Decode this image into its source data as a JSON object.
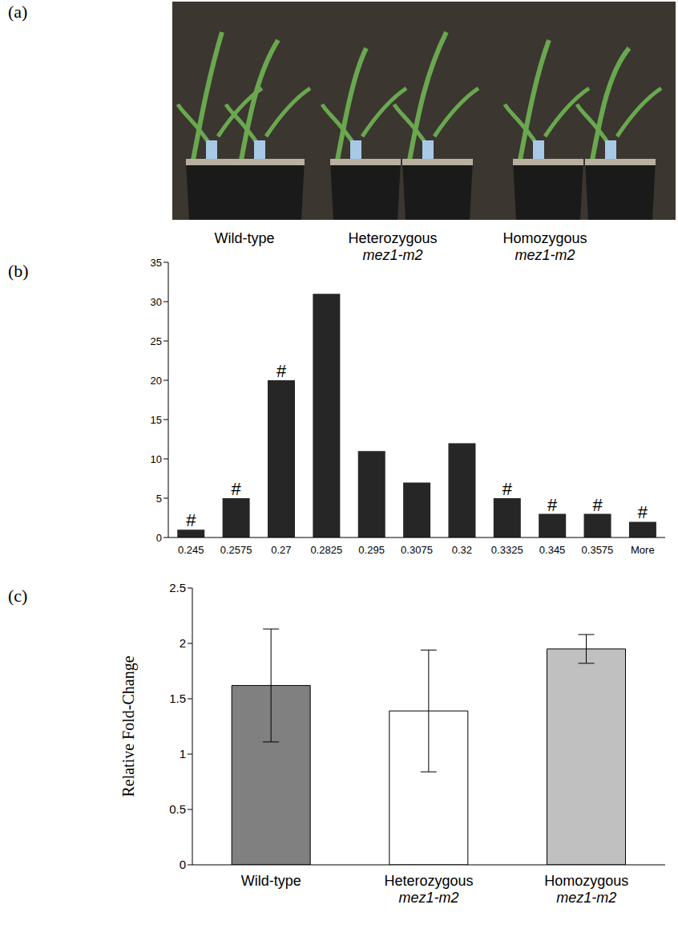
{
  "chart_data": [
    {
      "type": "image",
      "panel": "(a)",
      "categories": [
        "Wild-type",
        "Heterozygous mez1-m2",
        "Homozygous mez1-m2"
      ]
    },
    {
      "type": "bar",
      "panel": "(b)",
      "categories": [
        "0.245",
        "0.2575",
        "0.27",
        "0.2825",
        "0.295",
        "0.3075",
        "0.32",
        "0.3325",
        "0.345",
        "0.3575",
        "More"
      ],
      "values": [
        1,
        5,
        20,
        31,
        11,
        7,
        12,
        5,
        3,
        3,
        2
      ],
      "annotations": [
        "#",
        "#",
        "#",
        null,
        null,
        null,
        null,
        "#",
        "#",
        "#",
        "#"
      ],
      "color": "#262626",
      "ylim": [
        0,
        35
      ],
      "yticks": [
        0,
        5,
        10,
        15,
        20,
        25,
        30,
        35
      ]
    },
    {
      "type": "bar",
      "panel": "(c)",
      "ylabel": "Relative Fold-Change",
      "categories": [
        "Wild-type",
        "Heterozygous mez1-m2",
        "Homozygous mez1-m2"
      ],
      "values": [
        1.62,
        1.39,
        1.95
      ],
      "error": [
        0.51,
        0.55,
        0.13
      ],
      "colors": [
        "#808080",
        "#ffffff",
        "#c0c0c0"
      ],
      "ylim": [
        0,
        2.5
      ],
      "yticks": [
        0,
        0.5,
        1,
        1.5,
        2,
        2.5
      ]
    }
  ]
}
